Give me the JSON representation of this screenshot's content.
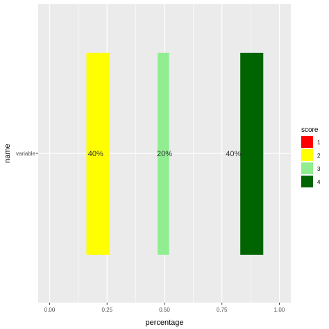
{
  "chart_data": {
    "type": "bar",
    "orientation": "horizontal",
    "xlabel": "percentage",
    "ylabel": "name",
    "categories": [
      "variable"
    ],
    "xlim": [
      -0.05,
      1.05
    ],
    "xticks": [
      0.0,
      0.25,
      0.5,
      0.75,
      1.0
    ],
    "xtick_labels": [
      "0.00",
      "0.25",
      "0.50",
      "0.75",
      "1.00"
    ],
    "grid": true,
    "legend": {
      "title": "score",
      "position": "right",
      "entries": [
        {
          "label": "1",
          "color": "#ff0000"
        },
        {
          "label": "2",
          "color": "#ffff00"
        },
        {
          "label": "3",
          "color": "#90ee90"
        },
        {
          "label": "4",
          "color": "#006400"
        }
      ]
    },
    "bars": [
      {
        "score": "2",
        "xmin": 0.16,
        "xmax": 0.26,
        "color": "#ffff00"
      },
      {
        "score": "3",
        "xmin": 0.47,
        "xmax": 0.52,
        "color": "#90ee90"
      },
      {
        "score": "4",
        "xmin": 0.83,
        "xmax": 0.93,
        "color": "#006400"
      }
    ],
    "data_labels": [
      {
        "text": "40%",
        "x": 0.2
      },
      {
        "text": "20%",
        "x": 0.5
      },
      {
        "text": "40%",
        "x": 0.8
      }
    ]
  }
}
